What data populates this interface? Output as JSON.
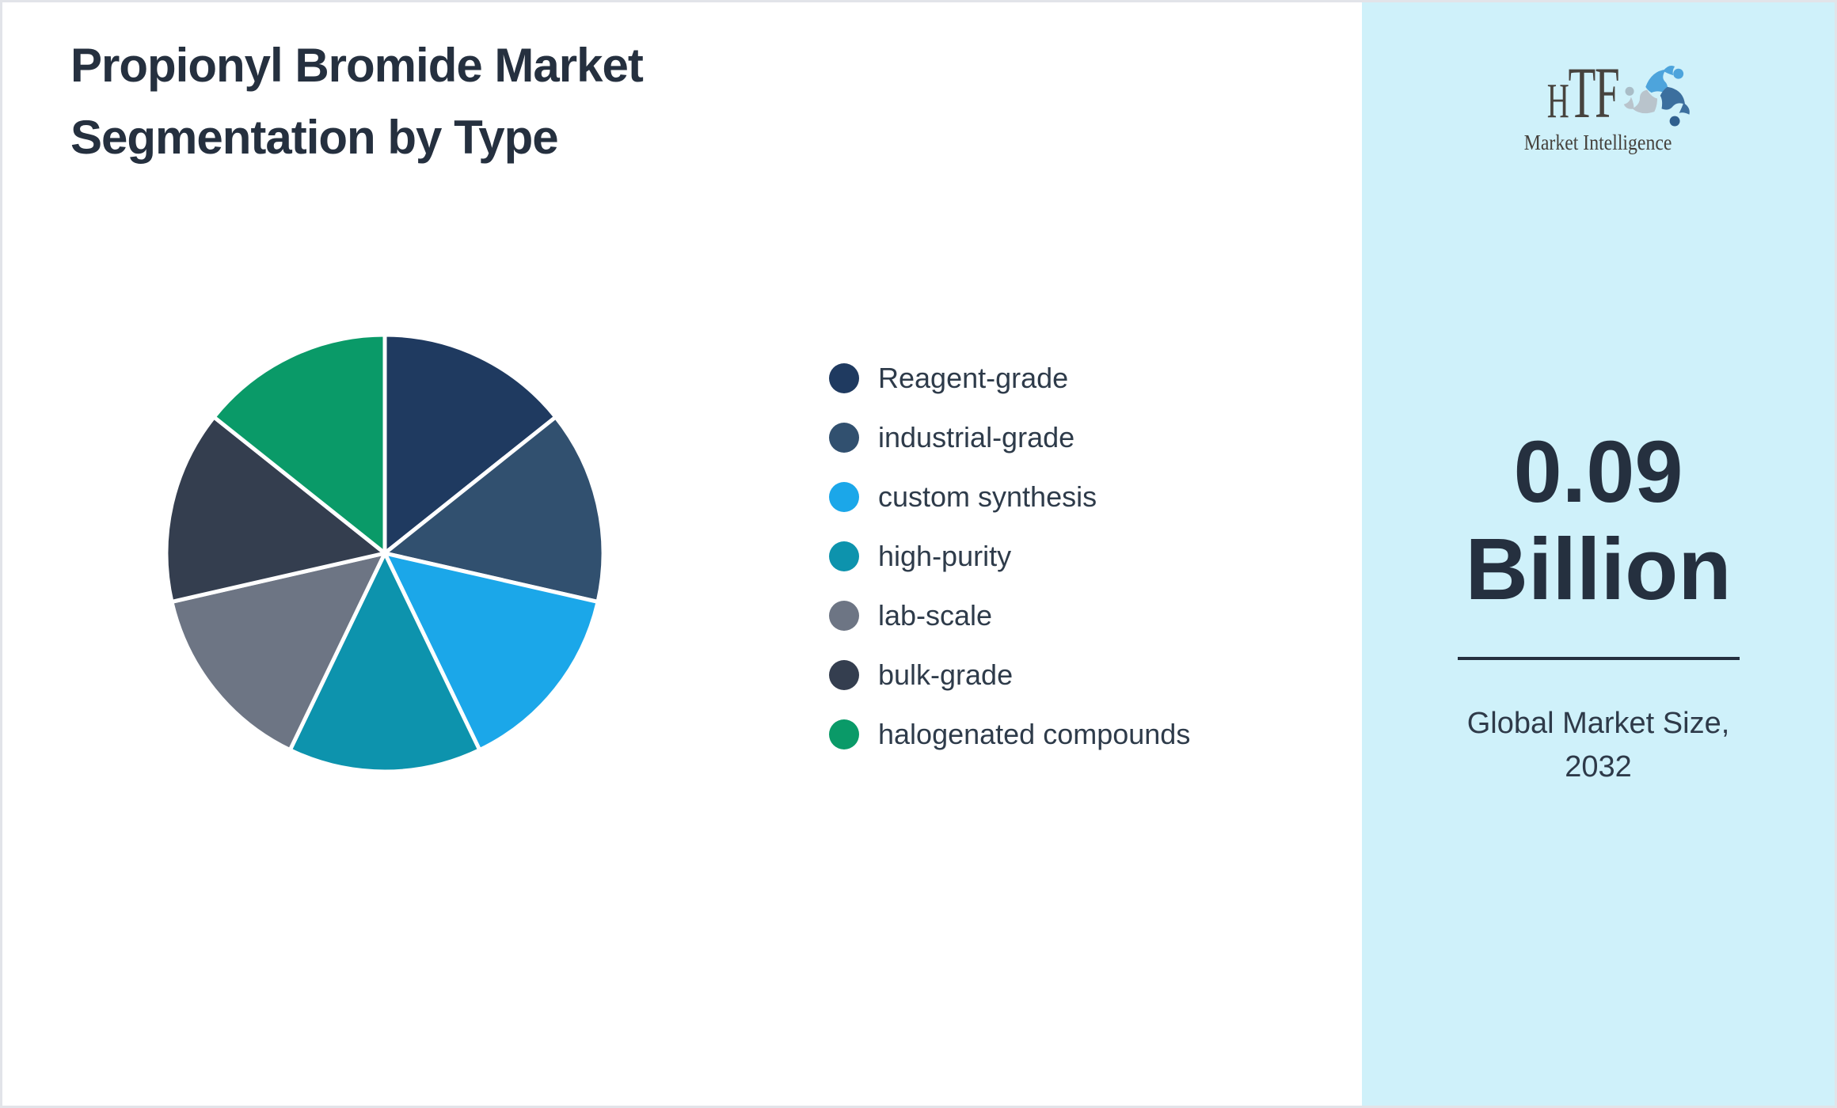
{
  "page": {
    "title_lines": [
      "Propionyl Bromide Market",
      "Segmentation by Type"
    ]
  },
  "chart_data": {
    "type": "pie",
    "title": "Propionyl Bromide Market Segmentation by Type",
    "legend_position": "right",
    "start_angle_deg": 0,
    "direction": "clockwise",
    "units": "share of market (%)",
    "segments": [
      {
        "label": "Reagent-grade",
        "value": 14.3,
        "color": "#1f3a60"
      },
      {
        "label": "industrial-grade",
        "value": 14.3,
        "color": "#31506f"
      },
      {
        "label": "custom synthesis",
        "value": 14.3,
        "color": "#1ba7e9"
      },
      {
        "label": "high-purity",
        "value": 14.3,
        "color": "#0d93ad"
      },
      {
        "label": "lab-scale",
        "value": 14.3,
        "color": "#6d7584"
      },
      {
        "label": "bulk-grade",
        "value": 14.3,
        "color": "#343e4f"
      },
      {
        "label": "halogenated compounds",
        "value": 14.3,
        "color": "#0a9a68"
      }
    ],
    "slice_border_color": "#ffffff"
  },
  "sidebar": {
    "background": "#cff1fa",
    "logo": {
      "brand": "HTF",
      "tagline": "Market Intelligence"
    },
    "market_value": "0.09",
    "market_unit": "Billion",
    "caption_lines": [
      "Global Market Size,",
      "2032"
    ]
  },
  "colors": {
    "title_text": "#25303f",
    "legend_text": "#2e3b4a",
    "frame_border": "#e2e4e9"
  }
}
